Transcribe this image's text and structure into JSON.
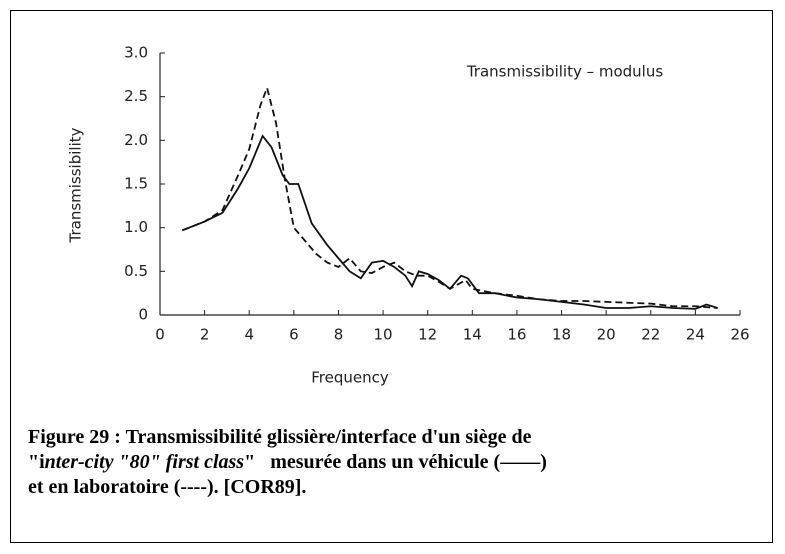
{
  "chart_data": {
    "type": "line",
    "annotation": "Transmissibility – modulus",
    "xlabel": "Frequency",
    "ylabel": "Transmissibility",
    "xlim": [
      0,
      26
    ],
    "xticks": [
      0,
      2,
      4,
      6,
      8,
      10,
      12,
      14,
      16,
      18,
      20,
      22,
      24,
      26
    ],
    "ylim": [
      0,
      3
    ],
    "yticks": [
      0,
      0.5,
      {
        "value": 1,
        "label": "1.0"
      },
      1.5,
      {
        "value": 2,
        "label": "2.0"
      },
      2.5,
      {
        "value": 3,
        "label": "3.0"
      }
    ],
    "grid": false,
    "series": [
      {
        "color": "#111111",
        "dash": "solid",
        "x": [
          1,
          2,
          2.8,
          3.5,
          4,
          4.6,
          5,
          5.5,
          5.8,
          6.2,
          6.8,
          7.5,
          8,
          8.5,
          9,
          9.5,
          10,
          10.5,
          11,
          11.3,
          11.6,
          12,
          12.5,
          13,
          13.5,
          13.8,
          14.3,
          15,
          16,
          17,
          18,
          19,
          20,
          21,
          22,
          23,
          24,
          24.5,
          25
        ],
        "values": [
          0.97,
          1.07,
          1.17,
          1.45,
          1.68,
          2.05,
          1.92,
          1.6,
          1.5,
          1.5,
          1.05,
          0.8,
          0.65,
          0.5,
          0.42,
          0.6,
          0.62,
          0.55,
          0.45,
          0.33,
          0.5,
          0.47,
          0.4,
          0.3,
          0.45,
          0.42,
          0.25,
          0.25,
          0.2,
          0.18,
          0.15,
          0.12,
          0.08,
          0.08,
          0.1,
          0.08,
          0.07,
          0.12,
          0.08
        ]
      },
      {
        "color": "#111111",
        "dash": "dashed",
        "x": [
          1,
          2,
          2.8,
          3.5,
          4,
          4.5,
          4.8,
          5.2,
          5.6,
          6,
          6.5,
          7,
          7.5,
          8,
          8.5,
          9,
          9.5,
          10,
          10.5,
          11,
          11.5,
          12,
          12.5,
          13,
          13.7,
          14,
          15,
          16,
          17,
          18,
          19,
          20,
          21,
          22,
          23,
          24,
          25
        ],
        "values": [
          0.97,
          1.07,
          1.2,
          1.6,
          1.9,
          2.4,
          2.6,
          2.2,
          1.55,
          1.0,
          0.85,
          0.7,
          0.6,
          0.55,
          0.65,
          0.5,
          0.48,
          0.55,
          0.6,
          0.5,
          0.45,
          0.45,
          0.38,
          0.3,
          0.4,
          0.3,
          0.25,
          0.22,
          0.18,
          0.16,
          0.16,
          0.15,
          0.14,
          0.13,
          0.1,
          0.1,
          0.08
        ]
      }
    ]
  },
  "caption": [
    [
      {
        "text": "Figure 29 : Transmissibilité glissière/interface d'un siège de",
        "italic": false
      }
    ],
    [
      {
        "text": "\"i",
        "italic": false
      },
      {
        "text": "nter-city \"80\" first class",
        "italic": true
      },
      {
        "text": "\"   mesurée dans un véhicule (——)",
        "italic": false
      }
    ],
    [
      {
        "text": "et en laboratoire (----). [COR89].",
        "italic": false
      }
    ]
  ]
}
